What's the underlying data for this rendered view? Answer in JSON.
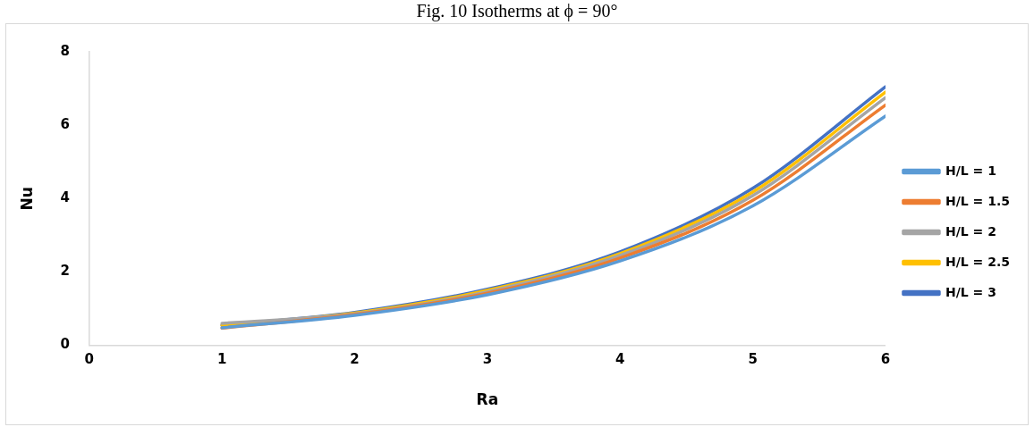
{
  "chart_data": {
    "type": "line",
    "xlabel": "Ra",
    "ylabel": "Nu",
    "annotations": [
      "Fig. 10 Isotherms at ϕ = 90°"
    ],
    "x": [
      1,
      2,
      3,
      4,
      5,
      6
    ],
    "xlim": [
      0,
      6
    ],
    "xticks": [
      0,
      1,
      2,
      3,
      4,
      5,
      6
    ],
    "ylim": [
      0,
      8
    ],
    "yticks": [
      0,
      2,
      4,
      6,
      8
    ],
    "grid": false,
    "legend": "right",
    "marker": "none",
    "line_style": "solid",
    "series": [
      {
        "name": "H/L = 1",
        "color": "#5b9bd5",
        "values": [
          0.48,
          0.82,
          1.38,
          2.3,
          3.8,
          6.25
        ]
      },
      {
        "name": "H/L = 1.5",
        "color": "#ed7d31",
        "values": [
          0.47,
          0.84,
          1.42,
          2.38,
          3.95,
          6.55
        ]
      },
      {
        "name": "H/L = 2",
        "color": "#a5a5a5",
        "values": [
          0.6,
          0.86,
          1.46,
          2.45,
          4.08,
          6.75
        ]
      },
      {
        "name": "H/L = 2.5",
        "color": "#ffc000",
        "values": [
          0.55,
          0.88,
          1.5,
          2.5,
          4.18,
          6.9
        ]
      },
      {
        "name": "H/L = 3",
        "color": "#4472c4",
        "values": [
          0.55,
          0.9,
          1.53,
          2.55,
          4.28,
          7.05
        ]
      }
    ]
  }
}
